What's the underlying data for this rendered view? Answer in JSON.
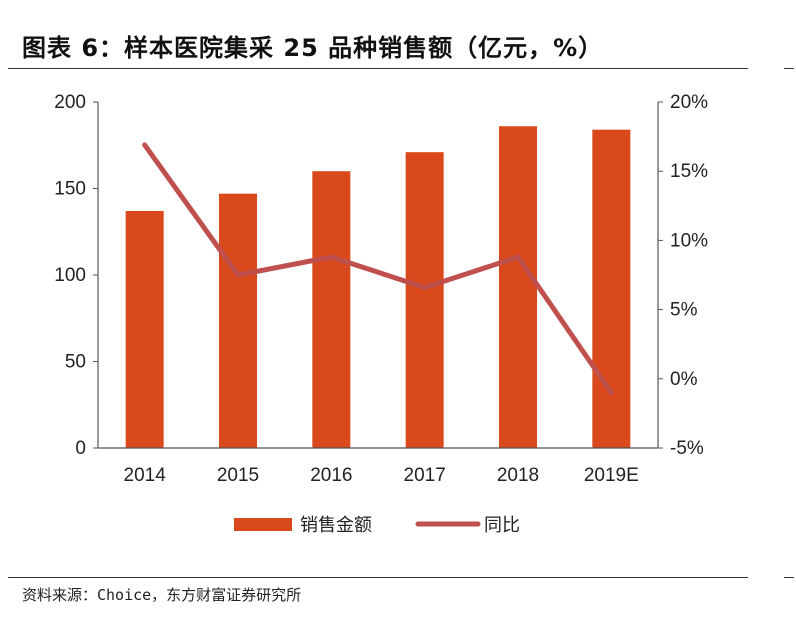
{
  "header": {
    "title": "图表 6：样本医院集采 25 品种销售额（亿元，%）"
  },
  "footer": {
    "source": "资料来源：Choice，东方财富证券研究所"
  },
  "colors": {
    "bar": "#D9491C",
    "line": "#C0504D",
    "axis": "#555555",
    "text": "#222222"
  },
  "chart_data": {
    "type": "bar",
    "title": "",
    "xlabel": "",
    "categories": [
      "2014",
      "2015",
      "2016",
      "2017",
      "2018",
      "2019E"
    ],
    "series": [
      {
        "name": "销售金额",
        "type": "bar",
        "axis": "left",
        "values": [
          137,
          147,
          160,
          171,
          186,
          184
        ]
      },
      {
        "name": "同比",
        "type": "line",
        "axis": "right",
        "unit": "%",
        "values": [
          16.9,
          7.5,
          8.8,
          6.6,
          8.8,
          -1.0
        ]
      }
    ],
    "y_left": {
      "ylim": [
        0,
        200
      ],
      "ticks": [
        0,
        50,
        100,
        150,
        200
      ],
      "tick_labels": [
        "0",
        "50",
        "100",
        "150",
        "200"
      ]
    },
    "y_right": {
      "ylim": [
        -5,
        20
      ],
      "ticks": [
        -5,
        0,
        5,
        10,
        15,
        20
      ],
      "tick_labels": [
        "-5%",
        "0%",
        "5%",
        "10%",
        "15%",
        "20%"
      ]
    },
    "grid": false,
    "legend_placement": "bottom-center"
  }
}
